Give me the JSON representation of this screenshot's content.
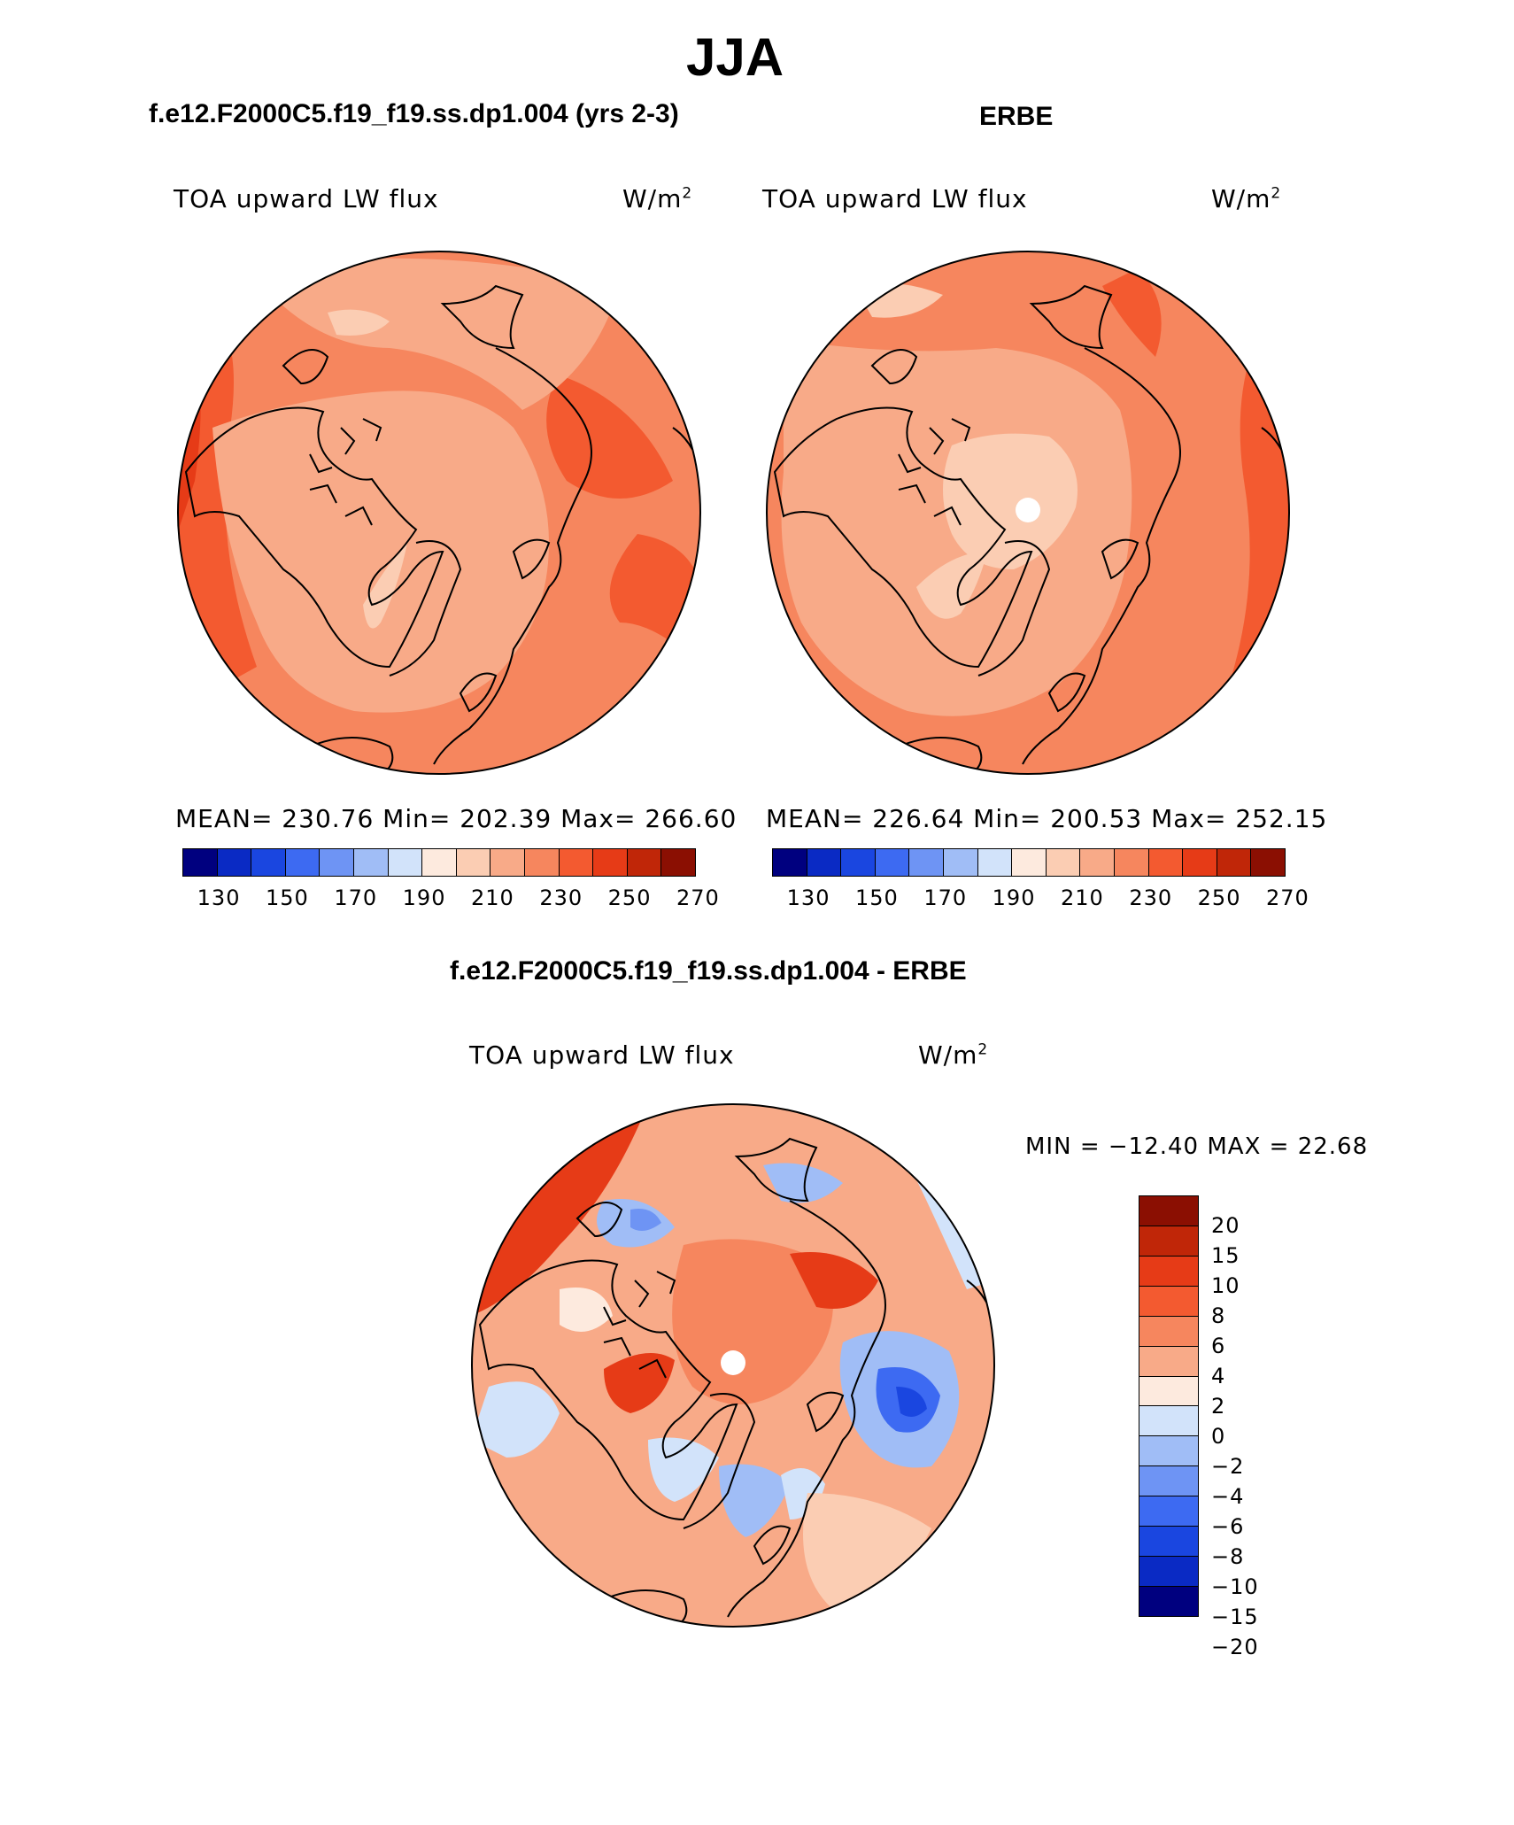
{
  "figure": {
    "season": "JJA"
  },
  "panels": {
    "model": {
      "case_title": "f.e12.F2000C5.f19_f19.ss.dp1.004 (yrs 2-3)",
      "variable": "TOA upward LW flux",
      "units_base": "W/m",
      "units_exp": "2",
      "stats": "MEAN= 230.76   Min= 202.39   Max= 266.60",
      "ticks": [
        "130",
        "150",
        "170",
        "190",
        "210",
        "230",
        "250",
        "270"
      ]
    },
    "obs": {
      "case_title": "ERBE",
      "variable": "TOA upward LW flux",
      "units_base": "W/m",
      "units_exp": "2",
      "stats": "MEAN= 226.64   Min= 200.53   Max= 252.15",
      "ticks": [
        "130",
        "150",
        "170",
        "190",
        "210",
        "230",
        "250",
        "270"
      ]
    },
    "diff": {
      "case_title": "f.e12.F2000C5.f19_f19.ss.dp1.004 - ERBE",
      "variable": "TOA upward LW flux",
      "units_base": "W/m",
      "units_exp": "2",
      "stats": "MIN = −12.40 MAX =   22.68",
      "ticks": [
        "20",
        "15",
        "10",
        "8",
        "6",
        "4",
        "2",
        "0",
        "−2",
        "−4",
        "−6",
        "−8",
        "−10",
        "−15",
        "−20"
      ]
    }
  },
  "colors": {
    "abs_scale": [
      "#00007f",
      "#0a2ac4",
      "#1a46e0",
      "#3d6af2",
      "#6e94f4",
      "#a0bdf6",
      "#d2e3fa",
      "#fdeade",
      "#fbcdb3",
      "#f8aa88",
      "#f6865e",
      "#f35a30",
      "#e63b17",
      "#c02608",
      "#8b0f02"
    ],
    "diff_scale": [
      "#8b0f02",
      "#c02608",
      "#e63b17",
      "#f35a30",
      "#f6865e",
      "#f8aa88",
      "#fdeade",
      "#d2e3fa",
      "#a0bdf6",
      "#6e94f4",
      "#3d6af2",
      "#1a46e0",
      "#0a2ac4",
      "#00007f"
    ]
  }
}
